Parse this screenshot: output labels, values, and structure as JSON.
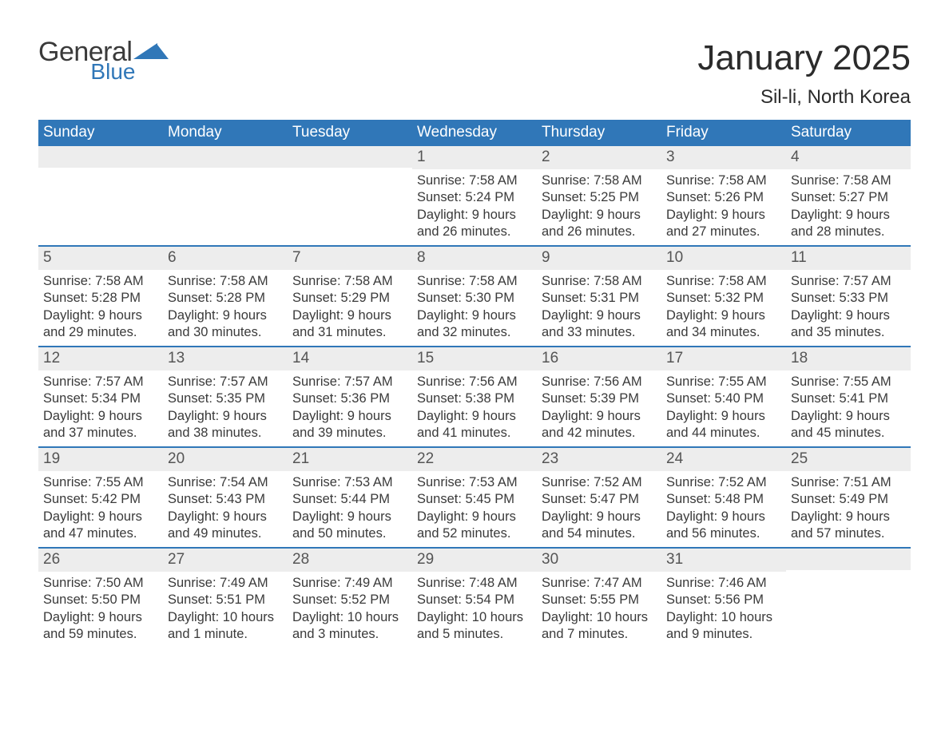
{
  "logo": {
    "word1": "General",
    "word2": "Blue",
    "flag_color": "#3077b8",
    "text_color": "#3a3a3a"
  },
  "title": "January 2025",
  "location": "Sil-li, North Korea",
  "colors": {
    "header_bg": "#3077b8",
    "header_text": "#ffffff",
    "daynum_bg": "#ededed",
    "daynum_text": "#555555",
    "body_text": "#3a3a3a",
    "row_divider": "#3077b8",
    "background": "#ffffff"
  },
  "fonts": {
    "title_size_pt": 33,
    "location_size_pt": 18,
    "header_size_pt": 14,
    "body_size_pt": 12
  },
  "day_headers": [
    "Sunday",
    "Monday",
    "Tuesday",
    "Wednesday",
    "Thursday",
    "Friday",
    "Saturday"
  ],
  "weeks": [
    [
      null,
      null,
      null,
      {
        "n": "1",
        "sunrise": "Sunrise: 7:58 AM",
        "sunset": "Sunset: 5:24 PM",
        "dl1": "Daylight: 9 hours",
        "dl2": "and 26 minutes."
      },
      {
        "n": "2",
        "sunrise": "Sunrise: 7:58 AM",
        "sunset": "Sunset: 5:25 PM",
        "dl1": "Daylight: 9 hours",
        "dl2": "and 26 minutes."
      },
      {
        "n": "3",
        "sunrise": "Sunrise: 7:58 AM",
        "sunset": "Sunset: 5:26 PM",
        "dl1": "Daylight: 9 hours",
        "dl2": "and 27 minutes."
      },
      {
        "n": "4",
        "sunrise": "Sunrise: 7:58 AM",
        "sunset": "Sunset: 5:27 PM",
        "dl1": "Daylight: 9 hours",
        "dl2": "and 28 minutes."
      }
    ],
    [
      {
        "n": "5",
        "sunrise": "Sunrise: 7:58 AM",
        "sunset": "Sunset: 5:28 PM",
        "dl1": "Daylight: 9 hours",
        "dl2": "and 29 minutes."
      },
      {
        "n": "6",
        "sunrise": "Sunrise: 7:58 AM",
        "sunset": "Sunset: 5:28 PM",
        "dl1": "Daylight: 9 hours",
        "dl2": "and 30 minutes."
      },
      {
        "n": "7",
        "sunrise": "Sunrise: 7:58 AM",
        "sunset": "Sunset: 5:29 PM",
        "dl1": "Daylight: 9 hours",
        "dl2": "and 31 minutes."
      },
      {
        "n": "8",
        "sunrise": "Sunrise: 7:58 AM",
        "sunset": "Sunset: 5:30 PM",
        "dl1": "Daylight: 9 hours",
        "dl2": "and 32 minutes."
      },
      {
        "n": "9",
        "sunrise": "Sunrise: 7:58 AM",
        "sunset": "Sunset: 5:31 PM",
        "dl1": "Daylight: 9 hours",
        "dl2": "and 33 minutes."
      },
      {
        "n": "10",
        "sunrise": "Sunrise: 7:58 AM",
        "sunset": "Sunset: 5:32 PM",
        "dl1": "Daylight: 9 hours",
        "dl2": "and 34 minutes."
      },
      {
        "n": "11",
        "sunrise": "Sunrise: 7:57 AM",
        "sunset": "Sunset: 5:33 PM",
        "dl1": "Daylight: 9 hours",
        "dl2": "and 35 minutes."
      }
    ],
    [
      {
        "n": "12",
        "sunrise": "Sunrise: 7:57 AM",
        "sunset": "Sunset: 5:34 PM",
        "dl1": "Daylight: 9 hours",
        "dl2": "and 37 minutes."
      },
      {
        "n": "13",
        "sunrise": "Sunrise: 7:57 AM",
        "sunset": "Sunset: 5:35 PM",
        "dl1": "Daylight: 9 hours",
        "dl2": "and 38 minutes."
      },
      {
        "n": "14",
        "sunrise": "Sunrise: 7:57 AM",
        "sunset": "Sunset: 5:36 PM",
        "dl1": "Daylight: 9 hours",
        "dl2": "and 39 minutes."
      },
      {
        "n": "15",
        "sunrise": "Sunrise: 7:56 AM",
        "sunset": "Sunset: 5:38 PM",
        "dl1": "Daylight: 9 hours",
        "dl2": "and 41 minutes."
      },
      {
        "n": "16",
        "sunrise": "Sunrise: 7:56 AM",
        "sunset": "Sunset: 5:39 PM",
        "dl1": "Daylight: 9 hours",
        "dl2": "and 42 minutes."
      },
      {
        "n": "17",
        "sunrise": "Sunrise: 7:55 AM",
        "sunset": "Sunset: 5:40 PM",
        "dl1": "Daylight: 9 hours",
        "dl2": "and 44 minutes."
      },
      {
        "n": "18",
        "sunrise": "Sunrise: 7:55 AM",
        "sunset": "Sunset: 5:41 PM",
        "dl1": "Daylight: 9 hours",
        "dl2": "and 45 minutes."
      }
    ],
    [
      {
        "n": "19",
        "sunrise": "Sunrise: 7:55 AM",
        "sunset": "Sunset: 5:42 PM",
        "dl1": "Daylight: 9 hours",
        "dl2": "and 47 minutes."
      },
      {
        "n": "20",
        "sunrise": "Sunrise: 7:54 AM",
        "sunset": "Sunset: 5:43 PM",
        "dl1": "Daylight: 9 hours",
        "dl2": "and 49 minutes."
      },
      {
        "n": "21",
        "sunrise": "Sunrise: 7:53 AM",
        "sunset": "Sunset: 5:44 PM",
        "dl1": "Daylight: 9 hours",
        "dl2": "and 50 minutes."
      },
      {
        "n": "22",
        "sunrise": "Sunrise: 7:53 AM",
        "sunset": "Sunset: 5:45 PM",
        "dl1": "Daylight: 9 hours",
        "dl2": "and 52 minutes."
      },
      {
        "n": "23",
        "sunrise": "Sunrise: 7:52 AM",
        "sunset": "Sunset: 5:47 PM",
        "dl1": "Daylight: 9 hours",
        "dl2": "and 54 minutes."
      },
      {
        "n": "24",
        "sunrise": "Sunrise: 7:52 AM",
        "sunset": "Sunset: 5:48 PM",
        "dl1": "Daylight: 9 hours",
        "dl2": "and 56 minutes."
      },
      {
        "n": "25",
        "sunrise": "Sunrise: 7:51 AM",
        "sunset": "Sunset: 5:49 PM",
        "dl1": "Daylight: 9 hours",
        "dl2": "and 57 minutes."
      }
    ],
    [
      {
        "n": "26",
        "sunrise": "Sunrise: 7:50 AM",
        "sunset": "Sunset: 5:50 PM",
        "dl1": "Daylight: 9 hours",
        "dl2": "and 59 minutes."
      },
      {
        "n": "27",
        "sunrise": "Sunrise: 7:49 AM",
        "sunset": "Sunset: 5:51 PM",
        "dl1": "Daylight: 10 hours",
        "dl2": "and 1 minute."
      },
      {
        "n": "28",
        "sunrise": "Sunrise: 7:49 AM",
        "sunset": "Sunset: 5:52 PM",
        "dl1": "Daylight: 10 hours",
        "dl2": "and 3 minutes."
      },
      {
        "n": "29",
        "sunrise": "Sunrise: 7:48 AM",
        "sunset": "Sunset: 5:54 PM",
        "dl1": "Daylight: 10 hours",
        "dl2": "and 5 minutes."
      },
      {
        "n": "30",
        "sunrise": "Sunrise: 7:47 AM",
        "sunset": "Sunset: 5:55 PM",
        "dl1": "Daylight: 10 hours",
        "dl2": "and 7 minutes."
      },
      {
        "n": "31",
        "sunrise": "Sunrise: 7:46 AM",
        "sunset": "Sunset: 5:56 PM",
        "dl1": "Daylight: 10 hours",
        "dl2": "and 9 minutes."
      },
      null
    ]
  ]
}
